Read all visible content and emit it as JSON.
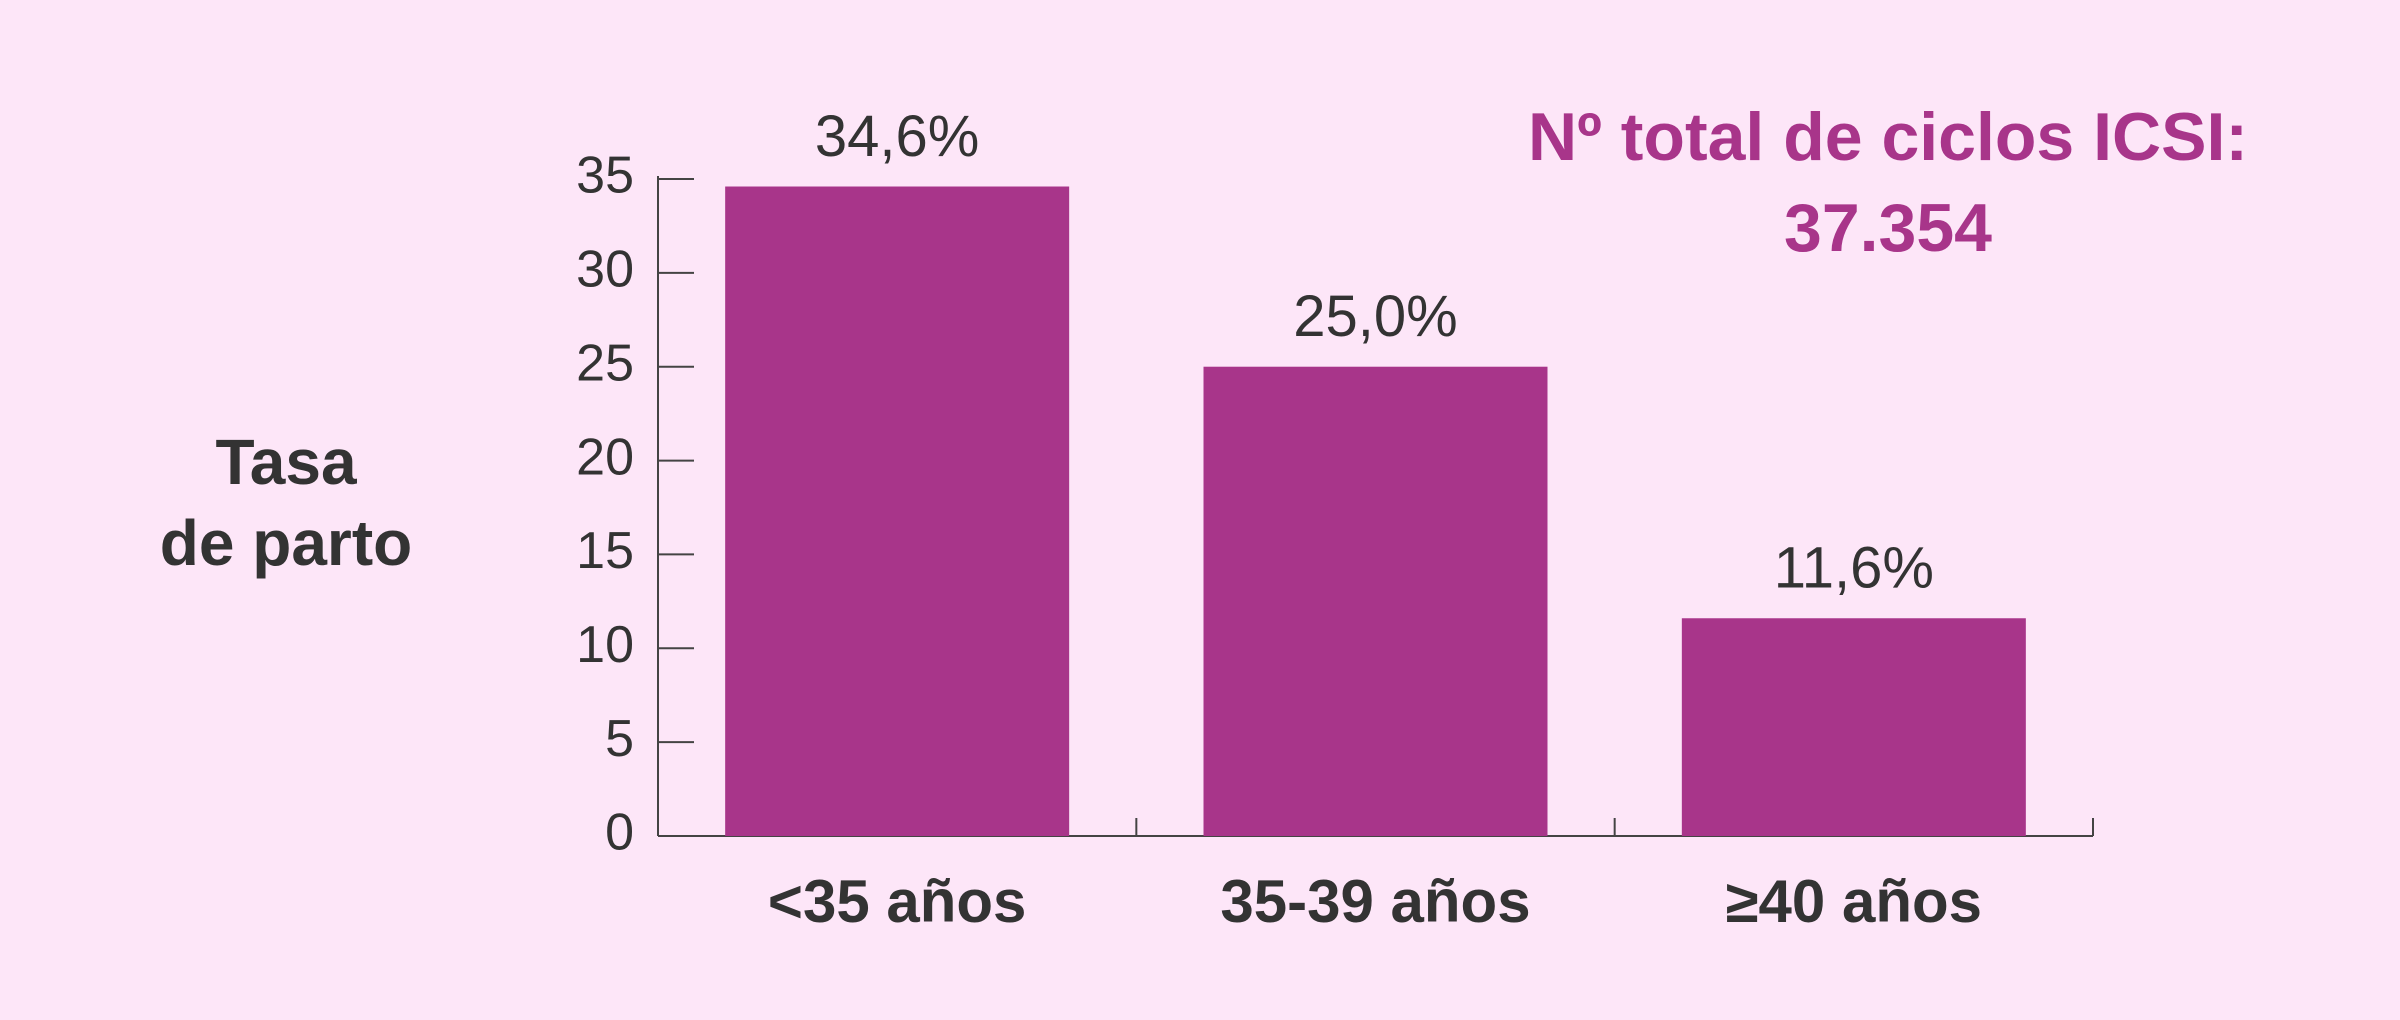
{
  "chart_data": {
    "type": "bar",
    "y_label": [
      "Tasa",
      "de parto"
    ],
    "annotation": [
      "Nº total de ciclos ICSI:",
      "37.354"
    ],
    "categories": [
      "<35 años",
      "35-39 años",
      "≥40 años"
    ],
    "values": [
      34.6,
      25.0,
      11.6
    ],
    "value_labels": [
      "34,6%",
      "25,0%",
      "11,6%"
    ],
    "color": "#a8358a",
    "ylim": [
      0,
      35
    ],
    "yticks": [
      0,
      5,
      10,
      15,
      20,
      25,
      30,
      35
    ],
    "grid": false
  }
}
